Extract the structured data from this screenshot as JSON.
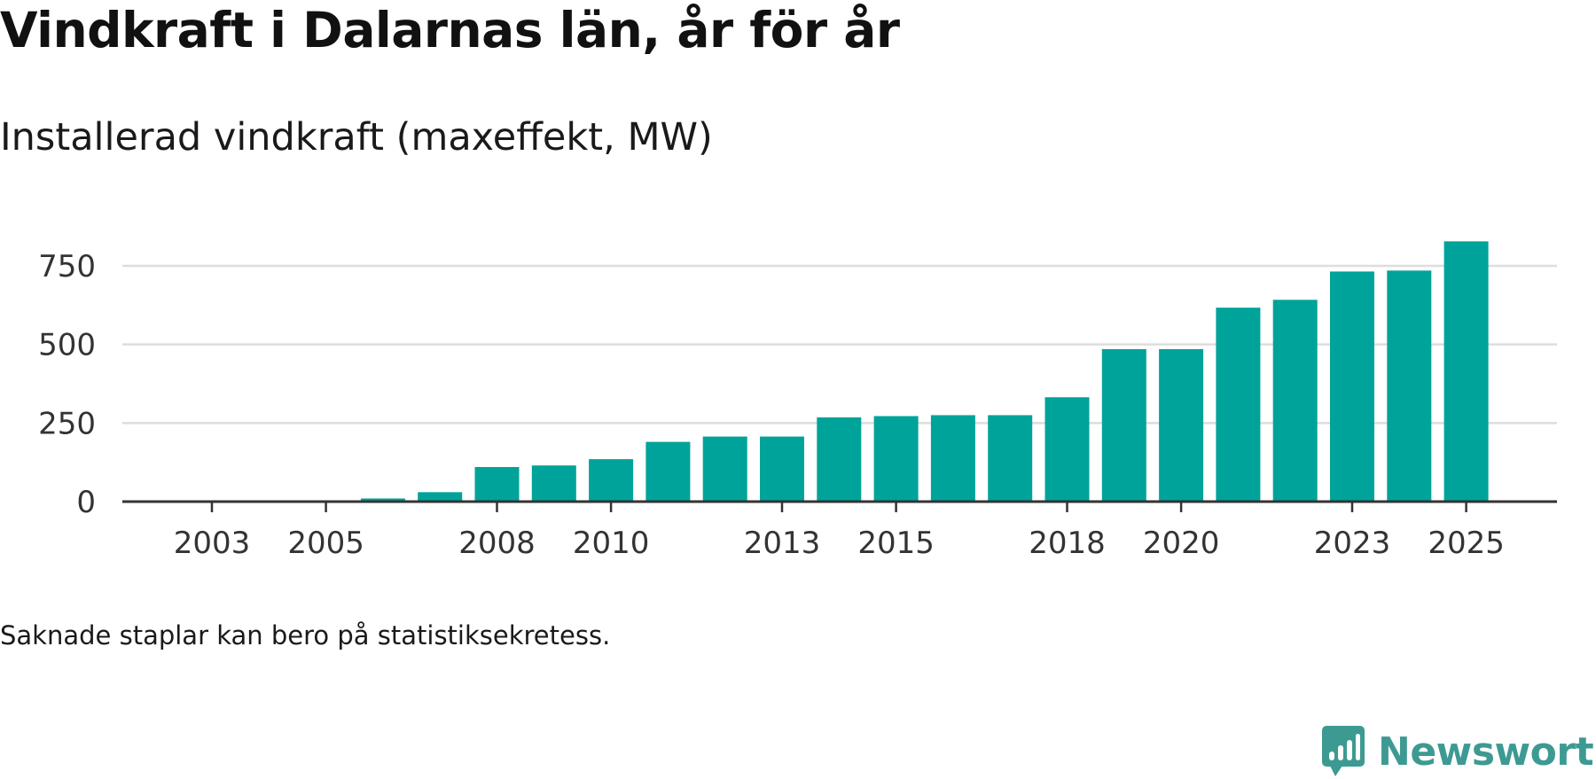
{
  "header": {
    "title": "Vindkraft i Dalarnas län, år för år",
    "subtitle": "Installerad vindkraft (maxeffekt, MW)"
  },
  "footer": {
    "note": "Saknade staplar kan bero på statistiksekretess.",
    "brand": "Newsworthy"
  },
  "colors": {
    "bar": "#00a39a",
    "grid": "#dddddd",
    "axis": "#333333",
    "brand": "#3d9a92"
  },
  "chart_data": {
    "type": "bar",
    "title": "Vindkraft i Dalarnas län, år för år",
    "subtitle": "Installerad vindkraft (maxeffekt, MW)",
    "xlabel": "",
    "ylabel": "",
    "categories": [
      2003,
      2004,
      2005,
      2006,
      2007,
      2008,
      2009,
      2010,
      2011,
      2012,
      2013,
      2014,
      2015,
      2016,
      2017,
      2018,
      2019,
      2020,
      2021,
      2022,
      2023,
      2024,
      2025
    ],
    "values": [
      1,
      1,
      1,
      10,
      30,
      110,
      115,
      135,
      190,
      207,
      207,
      268,
      272,
      275,
      275,
      332,
      485,
      485,
      617,
      642,
      732,
      735,
      828
    ],
    "x_tick_labels": [
      "2003",
      "2005",
      "2008",
      "2010",
      "2013",
      "2015",
      "2018",
      "2020",
      "2023",
      "2025"
    ],
    "y_ticks": [
      0,
      250,
      500,
      750
    ],
    "y_tick_labels": [
      "0",
      "250",
      "500",
      "750"
    ],
    "ylim": [
      0,
      860
    ],
    "grid": true,
    "legend": "none"
  }
}
